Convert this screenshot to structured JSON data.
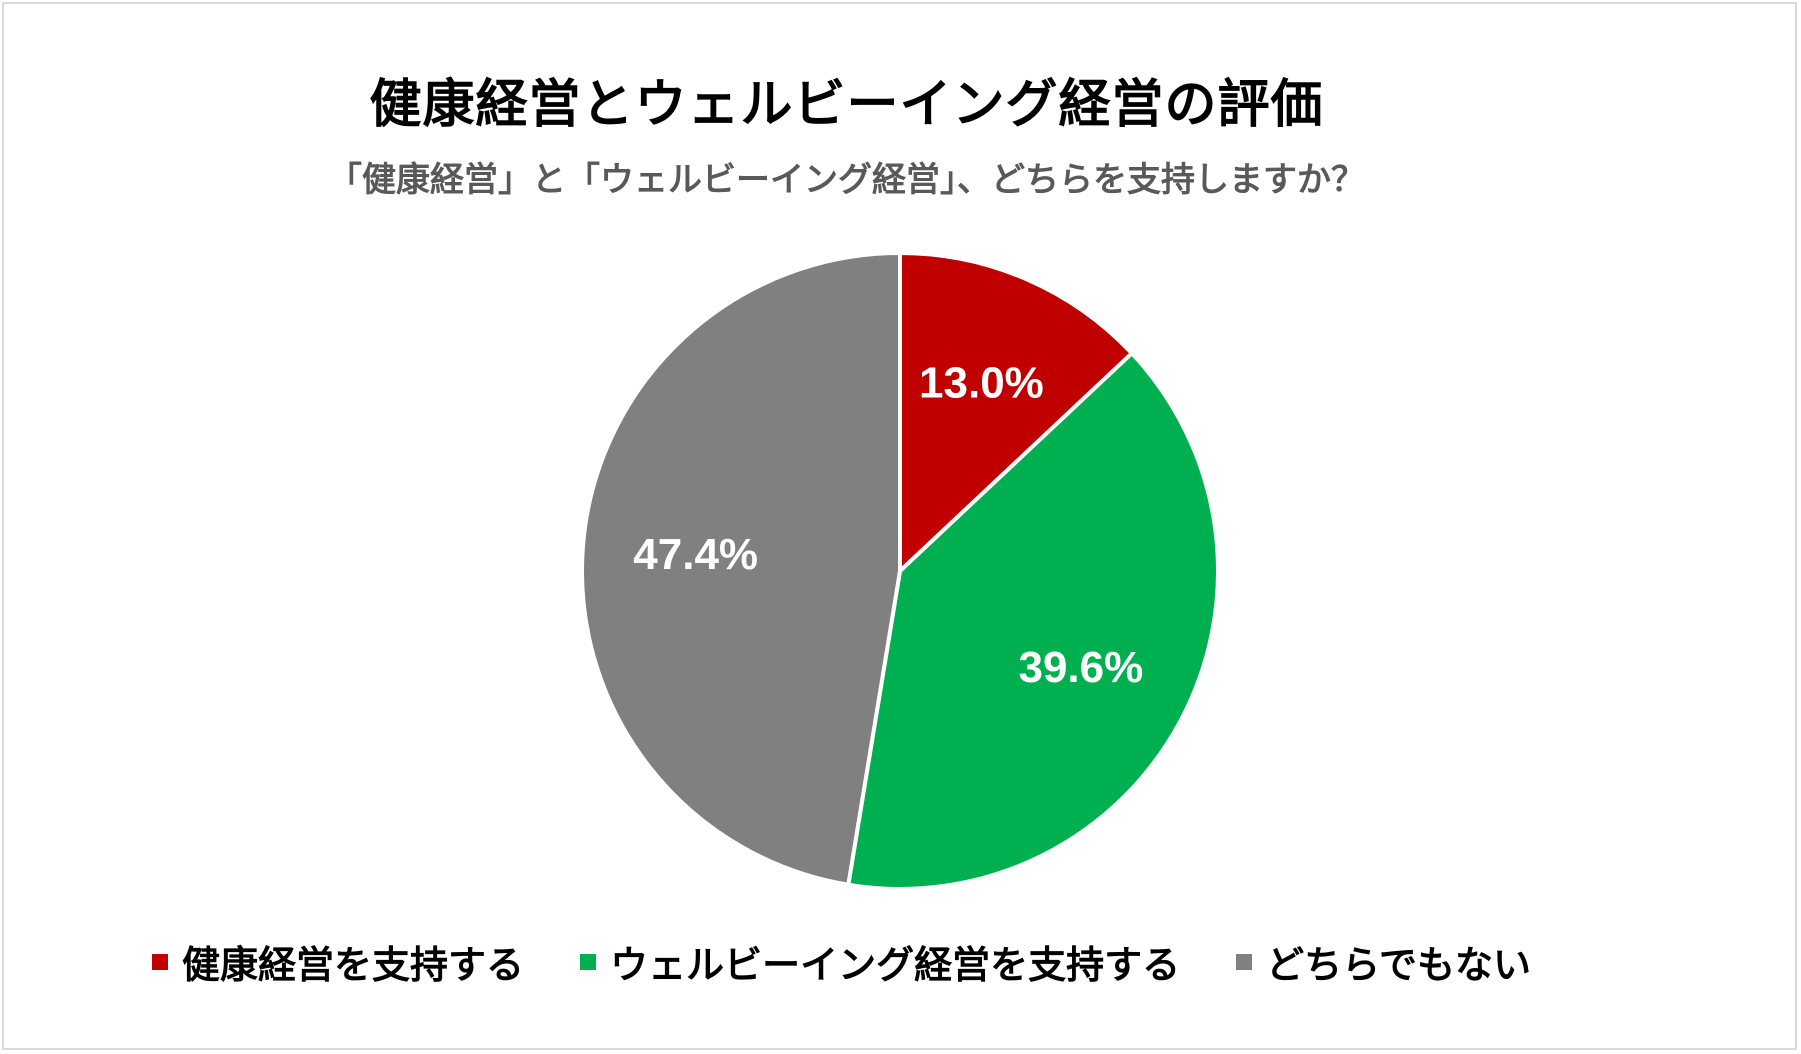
{
  "chart_data": {
    "type": "pie",
    "title": "健康経営とウェルビーイング経営の評価",
    "subtitle": "「健康経営」と「ウェルビーイング経営」、どちらを支持しますか？",
    "series": [
      {
        "name": "健康経営を支持する",
        "value": 13.0,
        "label": "13.0%",
        "color": "#c00000"
      },
      {
        "name": "ウェルビーイング経営を支持する",
        "value": 39.6,
        "label": "39.6%",
        "color": "#00b050"
      },
      {
        "name": "どちらでもない",
        "value": 47.4,
        "label": "47.4%",
        "color": "#808080"
      }
    ],
    "legend_position": "bottom",
    "start_angle": "12 o'clock",
    "direction": "clockwise"
  }
}
